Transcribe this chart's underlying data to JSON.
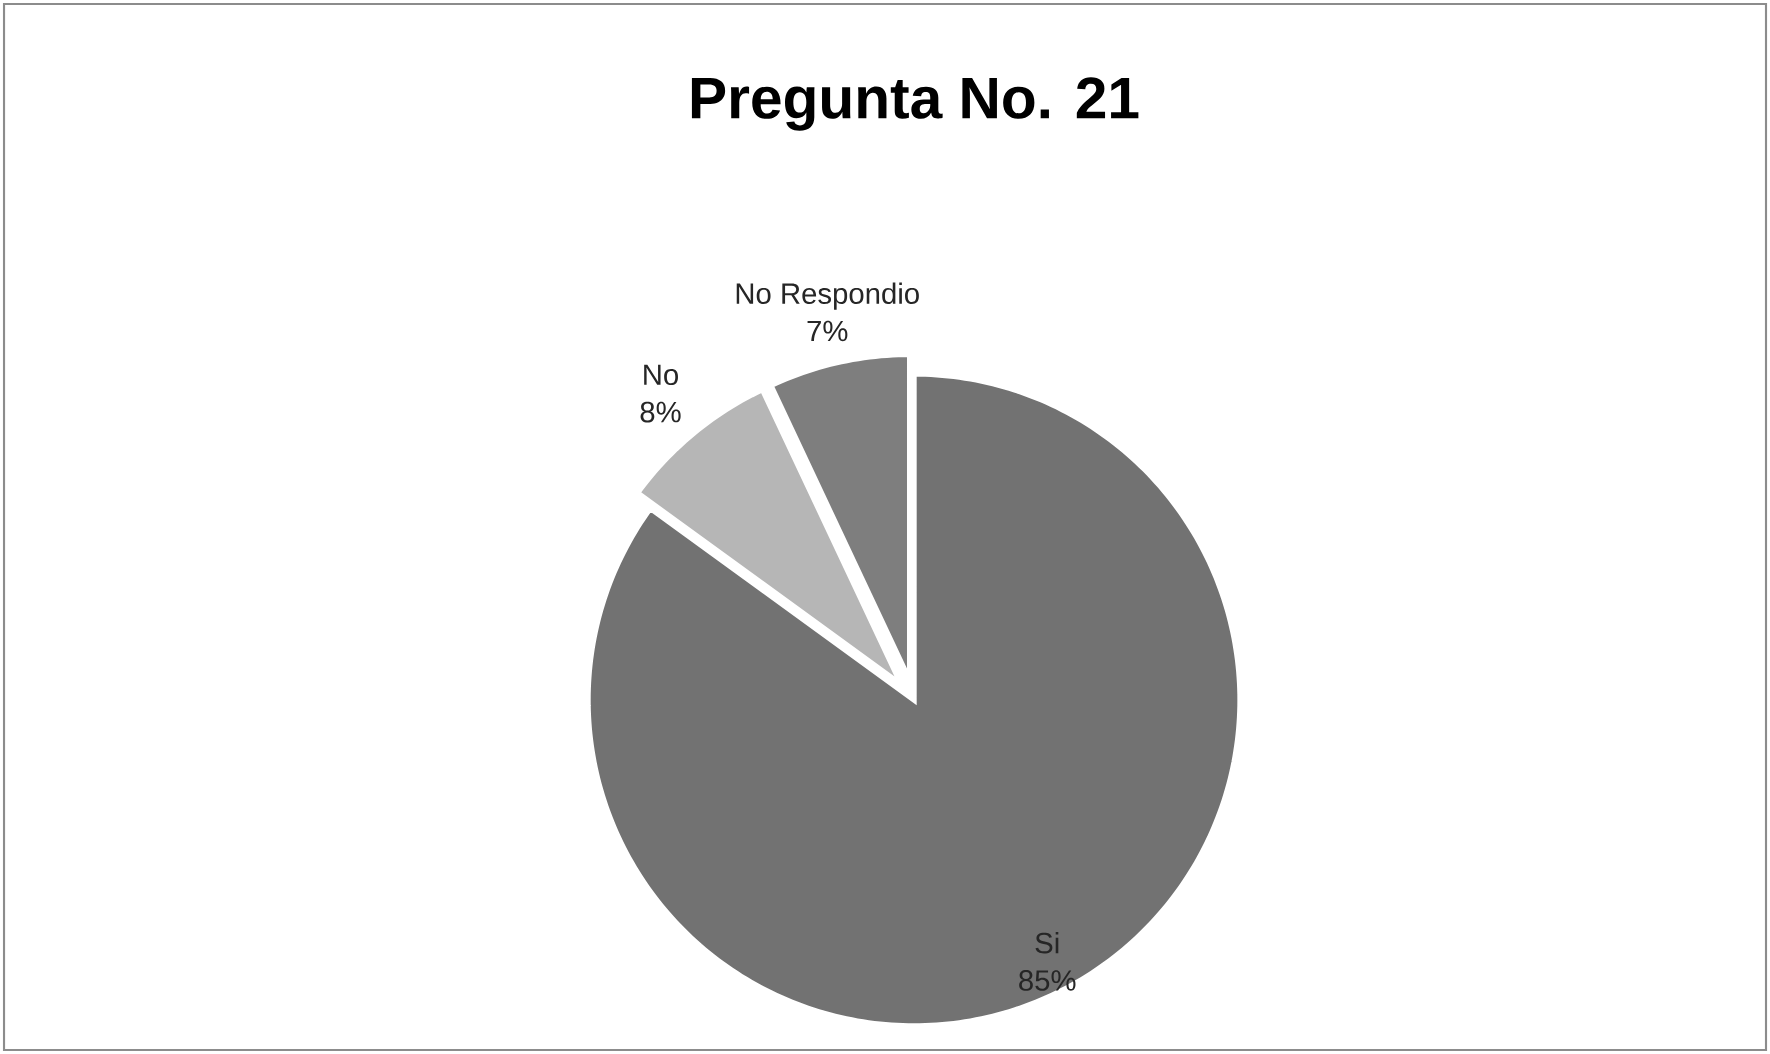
{
  "chart_data": {
    "type": "pie",
    "title": "Pregunta No. 21",
    "categories": [
      "Si",
      "No",
      "No Respondio"
    ],
    "values": [
      85,
      8,
      7
    ],
    "value_labels": [
      "85%",
      "8%",
      "7%"
    ],
    "colors": [
      "#727272",
      "#b6b6b6",
      "#7e7e7e"
    ]
  }
}
